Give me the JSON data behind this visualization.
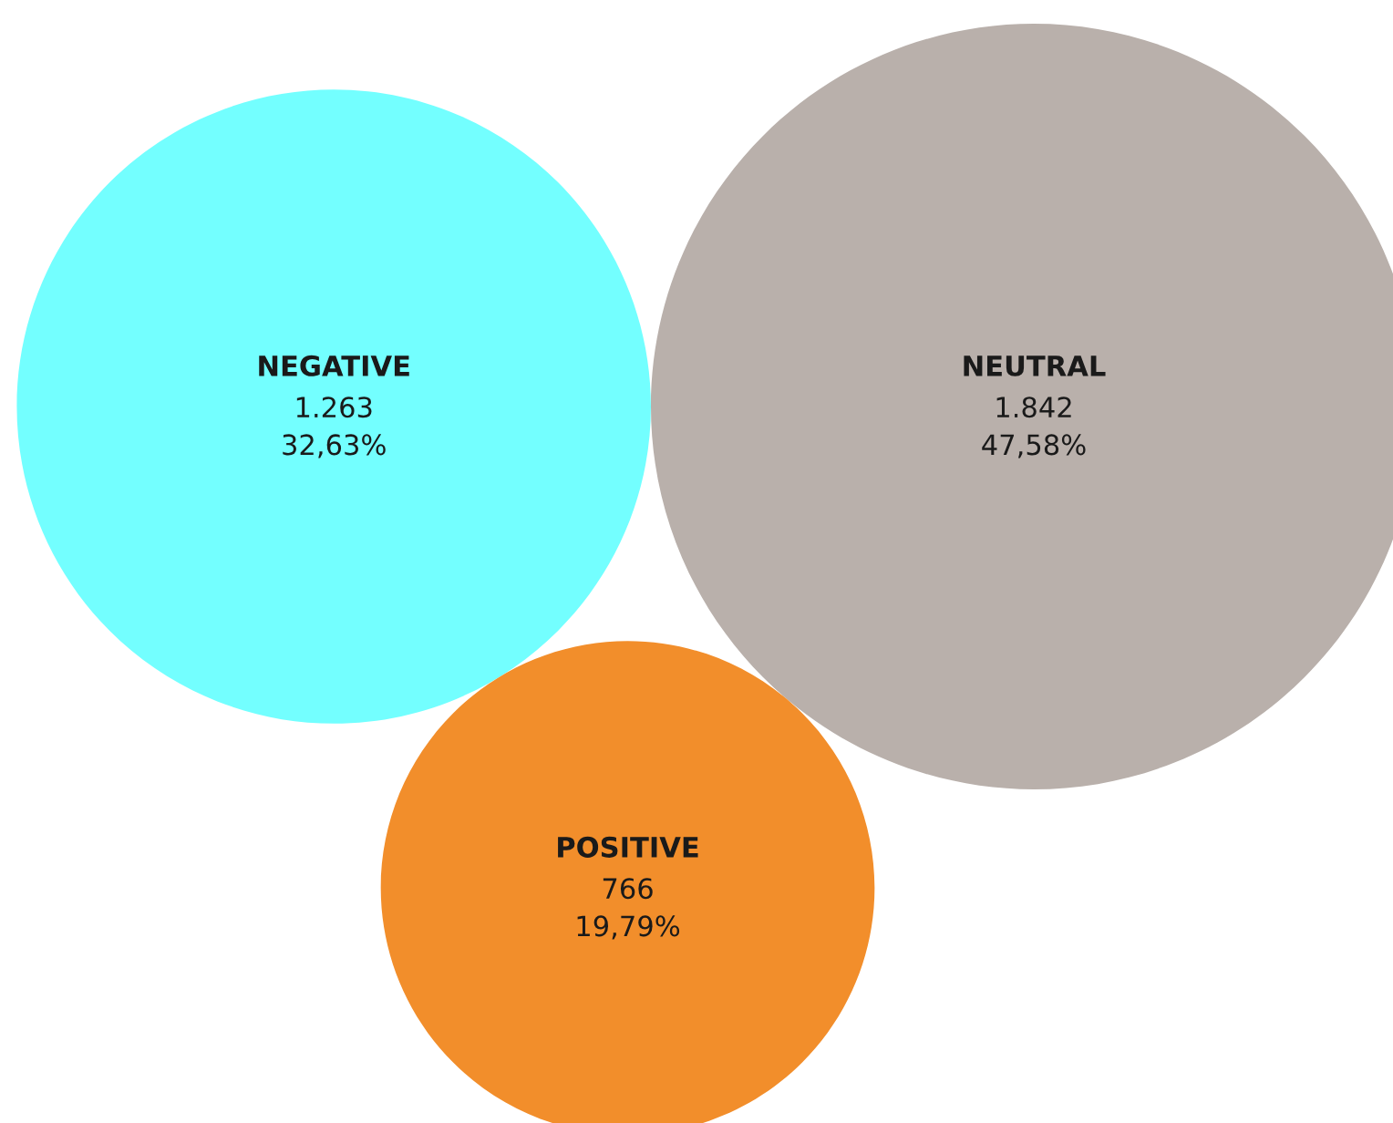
{
  "chart_data": {
    "type": "other",
    "categories": [
      "NEGATIVE",
      "NEUTRAL",
      "POSITIVE"
    ],
    "values": [
      1263,
      1842,
      766
    ],
    "colors": [
      "#73ffff",
      "#b9b0ab",
      "#f28e2b"
    ],
    "value_labels": [
      "1.263\n32,63%",
      "1.842\n47,58%",
      "766\n19,79%"
    ]
  }
}
